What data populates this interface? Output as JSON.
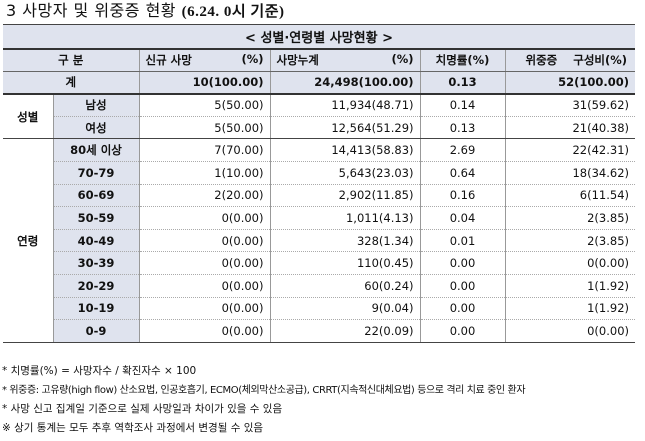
{
  "heading": {
    "prefix": "3  사망자 및 위중증 현황",
    "date": "(6.24. 0시 기준)"
  },
  "banner": "< 성별·연령별 사망현황 >",
  "columns": {
    "group": "구 분",
    "new_deaths": "신규 사망",
    "new_pct": "(%)",
    "cum_deaths": "사망누계",
    "cum_pct": "(%)",
    "fatality": "치명률(%)",
    "severe": "위중증",
    "severe_pct": "구성비(%)"
  },
  "total": {
    "label": "계",
    "new": "10(100.00)",
    "cum": "24,498(100.00)",
    "fatality": "0.13",
    "severe": "52(100.00)"
  },
  "sex": {
    "label": "성별",
    "rows": [
      {
        "label": "남성",
        "new": "5(50.00)",
        "cum": "11,934(48.71)",
        "fatality": "0.14",
        "severe": "31(59.62)"
      },
      {
        "label": "여성",
        "new": "5(50.00)",
        "cum": "12,564(51.29)",
        "fatality": "0.13",
        "severe": "21(40.38)"
      }
    ]
  },
  "age": {
    "label": "연령",
    "rows": [
      {
        "label": "80세 이상",
        "new": "7(70.00)",
        "cum": "14,413(58.83)",
        "fatality": "2.69",
        "severe": "22(42.31)"
      },
      {
        "label": "70-79",
        "new": "1(10.00)",
        "cum": "5,643(23.03)",
        "fatality": "0.64",
        "severe": "18(34.62)"
      },
      {
        "label": "60-69",
        "new": "2(20.00)",
        "cum": "2,902(11.85)",
        "fatality": "0.16",
        "severe": "6(11.54)"
      },
      {
        "label": "50-59",
        "new": "0(0.00)",
        "cum": "1,011(4.13)",
        "fatality": "0.04",
        "severe": "2(3.85)"
      },
      {
        "label": "40-49",
        "new": "0(0.00)",
        "cum": "328(1.34)",
        "fatality": "0.01",
        "severe": "2(3.85)"
      },
      {
        "label": "30-39",
        "new": "0(0.00)",
        "cum": "110(0.45)",
        "fatality": "0.00",
        "severe": "0(0.00)"
      },
      {
        "label": "20-29",
        "new": "0(0.00)",
        "cum": "60(0.24)",
        "fatality": "0.00",
        "severe": "1(1.92)"
      },
      {
        "label": "10-19",
        "new": "0(0.00)",
        "cum": "9(0.04)",
        "fatality": "0.00",
        "severe": "1(1.92)"
      },
      {
        "label": "0-9",
        "new": "0(0.00)",
        "cum": "22(0.09)",
        "fatality": "0.00",
        "severe": "0(0.00)"
      }
    ]
  },
  "notes": [
    "* 치명률(%) = 사망자수 / 확진자수 × 100",
    "* 위중증: 고유량(high flow) 산소요법, 인공호흡기, ECMO(체외막산소공급), CRRT(지속적신대체요법) 등으로 격리 치료 중인 환자",
    "* 사망 신고 집계일 기준으로 실제 사망일과 차이가 있을 수 있음",
    "※ 상기 통계는 모두 추후 역학조사 과정에서 변경될 수 있음"
  ]
}
